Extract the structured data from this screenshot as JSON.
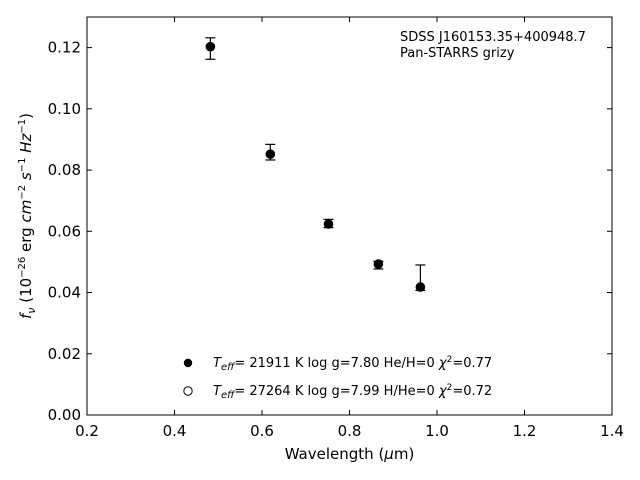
{
  "chart_data": {
    "type": "scatter",
    "annotation": [
      "SDSS J160153.35+400948.7",
      "Pan-STARRS grizy"
    ],
    "xlabel": "Wavelength (μm)",
    "ylabel": "fν (10⁻²⁶ erg cm⁻² s⁻¹ Hz⁻¹)",
    "xlim": [
      0.2,
      1.4
    ],
    "ylim": [
      0.0,
      0.13
    ],
    "xticks": [
      0.2,
      0.4,
      0.6,
      0.8,
      1.0,
      1.2,
      1.4
    ],
    "xtick_labels": [
      "0.2",
      "0.4",
      "0.6",
      "0.8",
      "1.0",
      "1.2",
      "1.4"
    ],
    "yticks": [
      0.0,
      0.02,
      0.04,
      0.06,
      0.08,
      0.1,
      0.12
    ],
    "ytick_labels": [
      "0.00",
      "0.02",
      "0.04",
      "0.06",
      "0.08",
      "0.10",
      "0.12"
    ],
    "grid": false,
    "observed": {
      "x": [
        0.482,
        0.619,
        0.752,
        0.866,
        0.962
      ],
      "y_low": [
        0.1162,
        0.0833,
        0.0612,
        0.0477,
        0.0407
      ],
      "y_high": [
        0.1232,
        0.0884,
        0.0639,
        0.0502,
        0.049
      ]
    },
    "series": [
      {
        "name": "Teff= 21911 K  log g=7.80  He/H=0  χ²=0.77",
        "marker": "filled-circle",
        "x": [
          0.482,
          0.619,
          0.752,
          0.866,
          0.962
        ],
        "y": [
          0.1203,
          0.0852,
          0.0624,
          0.0493,
          0.0418
        ]
      },
      {
        "name": "Teff= 27264 K  log g=7.99  H/He=0  χ²=0.72",
        "marker": "open-circle",
        "x": [],
        "y": []
      }
    ],
    "legend": [
      {
        "teff": "= 21911 K  log g=7.80  He/H=0  ",
        "chi2": "=0.77"
      },
      {
        "teff": "= 27264 K  log g=7.99  H/He=0  ",
        "chi2": "=0.72"
      }
    ],
    "legend_placement": "lower-center"
  }
}
